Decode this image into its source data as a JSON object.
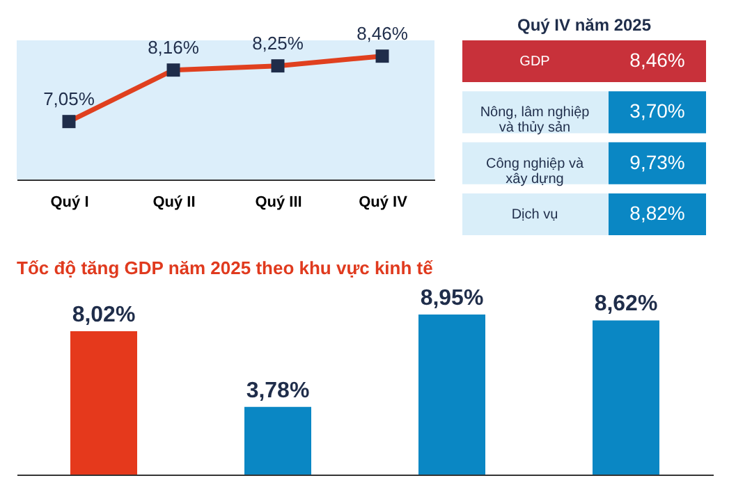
{
  "chart_data": [
    {
      "type": "line",
      "categories": [
        "Quý I",
        "Quý II",
        "Quý III",
        "Quý IV"
      ],
      "values": [
        7.05,
        8.16,
        8.25,
        8.46
      ],
      "value_labels": [
        "7,05%",
        "8,16%",
        "8,25%",
        "8,46%"
      ],
      "color": "#e0401f",
      "marker": "square",
      "ylim": [
        5.8,
        8.8
      ],
      "tick_labels": "x",
      "grid": false
    },
    {
      "type": "other",
      "title": "Quý IV năm 2025",
      "categories": [
        "GDP",
        "Nông, lâm nghiệp và thủy sản",
        "Công nghiệp và xây dựng",
        "Dịch vụ"
      ],
      "value_labels": [
        "8,46%",
        "3,70%",
        "9,73%",
        "8,82%"
      ]
    },
    {
      "type": "bar",
      "title": "Tốc độ tăng GDP năm 2025 theo khu vực kinh tế",
      "categories": [
        null,
        null,
        null,
        null
      ],
      "values": [
        8.02,
        3.78,
        8.95,
        8.62
      ],
      "value_labels": [
        "8,02%",
        "3,78%",
        "8,95%",
        "8,62%"
      ],
      "colors": [
        "#e5391c",
        "#0a87c4",
        "#0a87c4",
        "#0a87c4"
      ],
      "tick_labels": false,
      "grid": false
    }
  ]
}
